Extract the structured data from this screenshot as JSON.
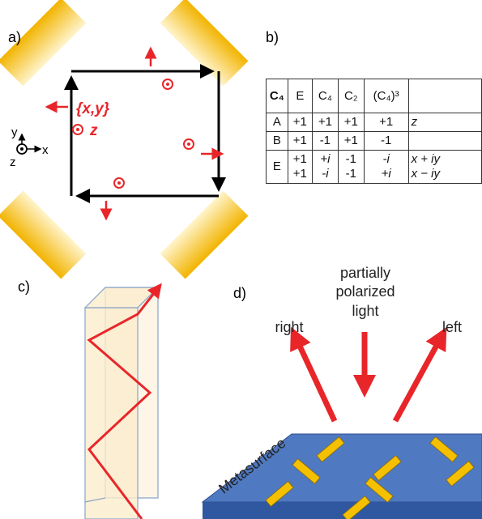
{
  "labels": {
    "a": "a)",
    "b": "b)",
    "c": "c)",
    "d": "d)"
  },
  "panel_a": {
    "mode": "{x,y}",
    "z_mode": "z",
    "axes": {
      "y": "y",
      "x": "x",
      "z": "z"
    }
  },
  "table": {
    "header": [
      "C₄",
      "E",
      "C₄",
      "C₂",
      "(C₄)³"
    ],
    "rows": [
      [
        "A",
        "+1",
        "+1",
        "+1",
        "+1",
        "z"
      ],
      [
        "B",
        "+1",
        "-1",
        "+1",
        "-1"
      ],
      [
        "E",
        [
          "+1",
          "+1"
        ],
        [
          "+i",
          "-i"
        ],
        [
          "-1",
          "-1"
        ],
        [
          "-i",
          "+i"
        ],
        [
          "x + iy",
          "x − iy"
        ]
      ]
    ]
  },
  "panel_d": {
    "incident": [
      "partially",
      "polarized",
      "light"
    ],
    "right": "right",
    "left": "left",
    "surface": "Metasurface"
  }
}
